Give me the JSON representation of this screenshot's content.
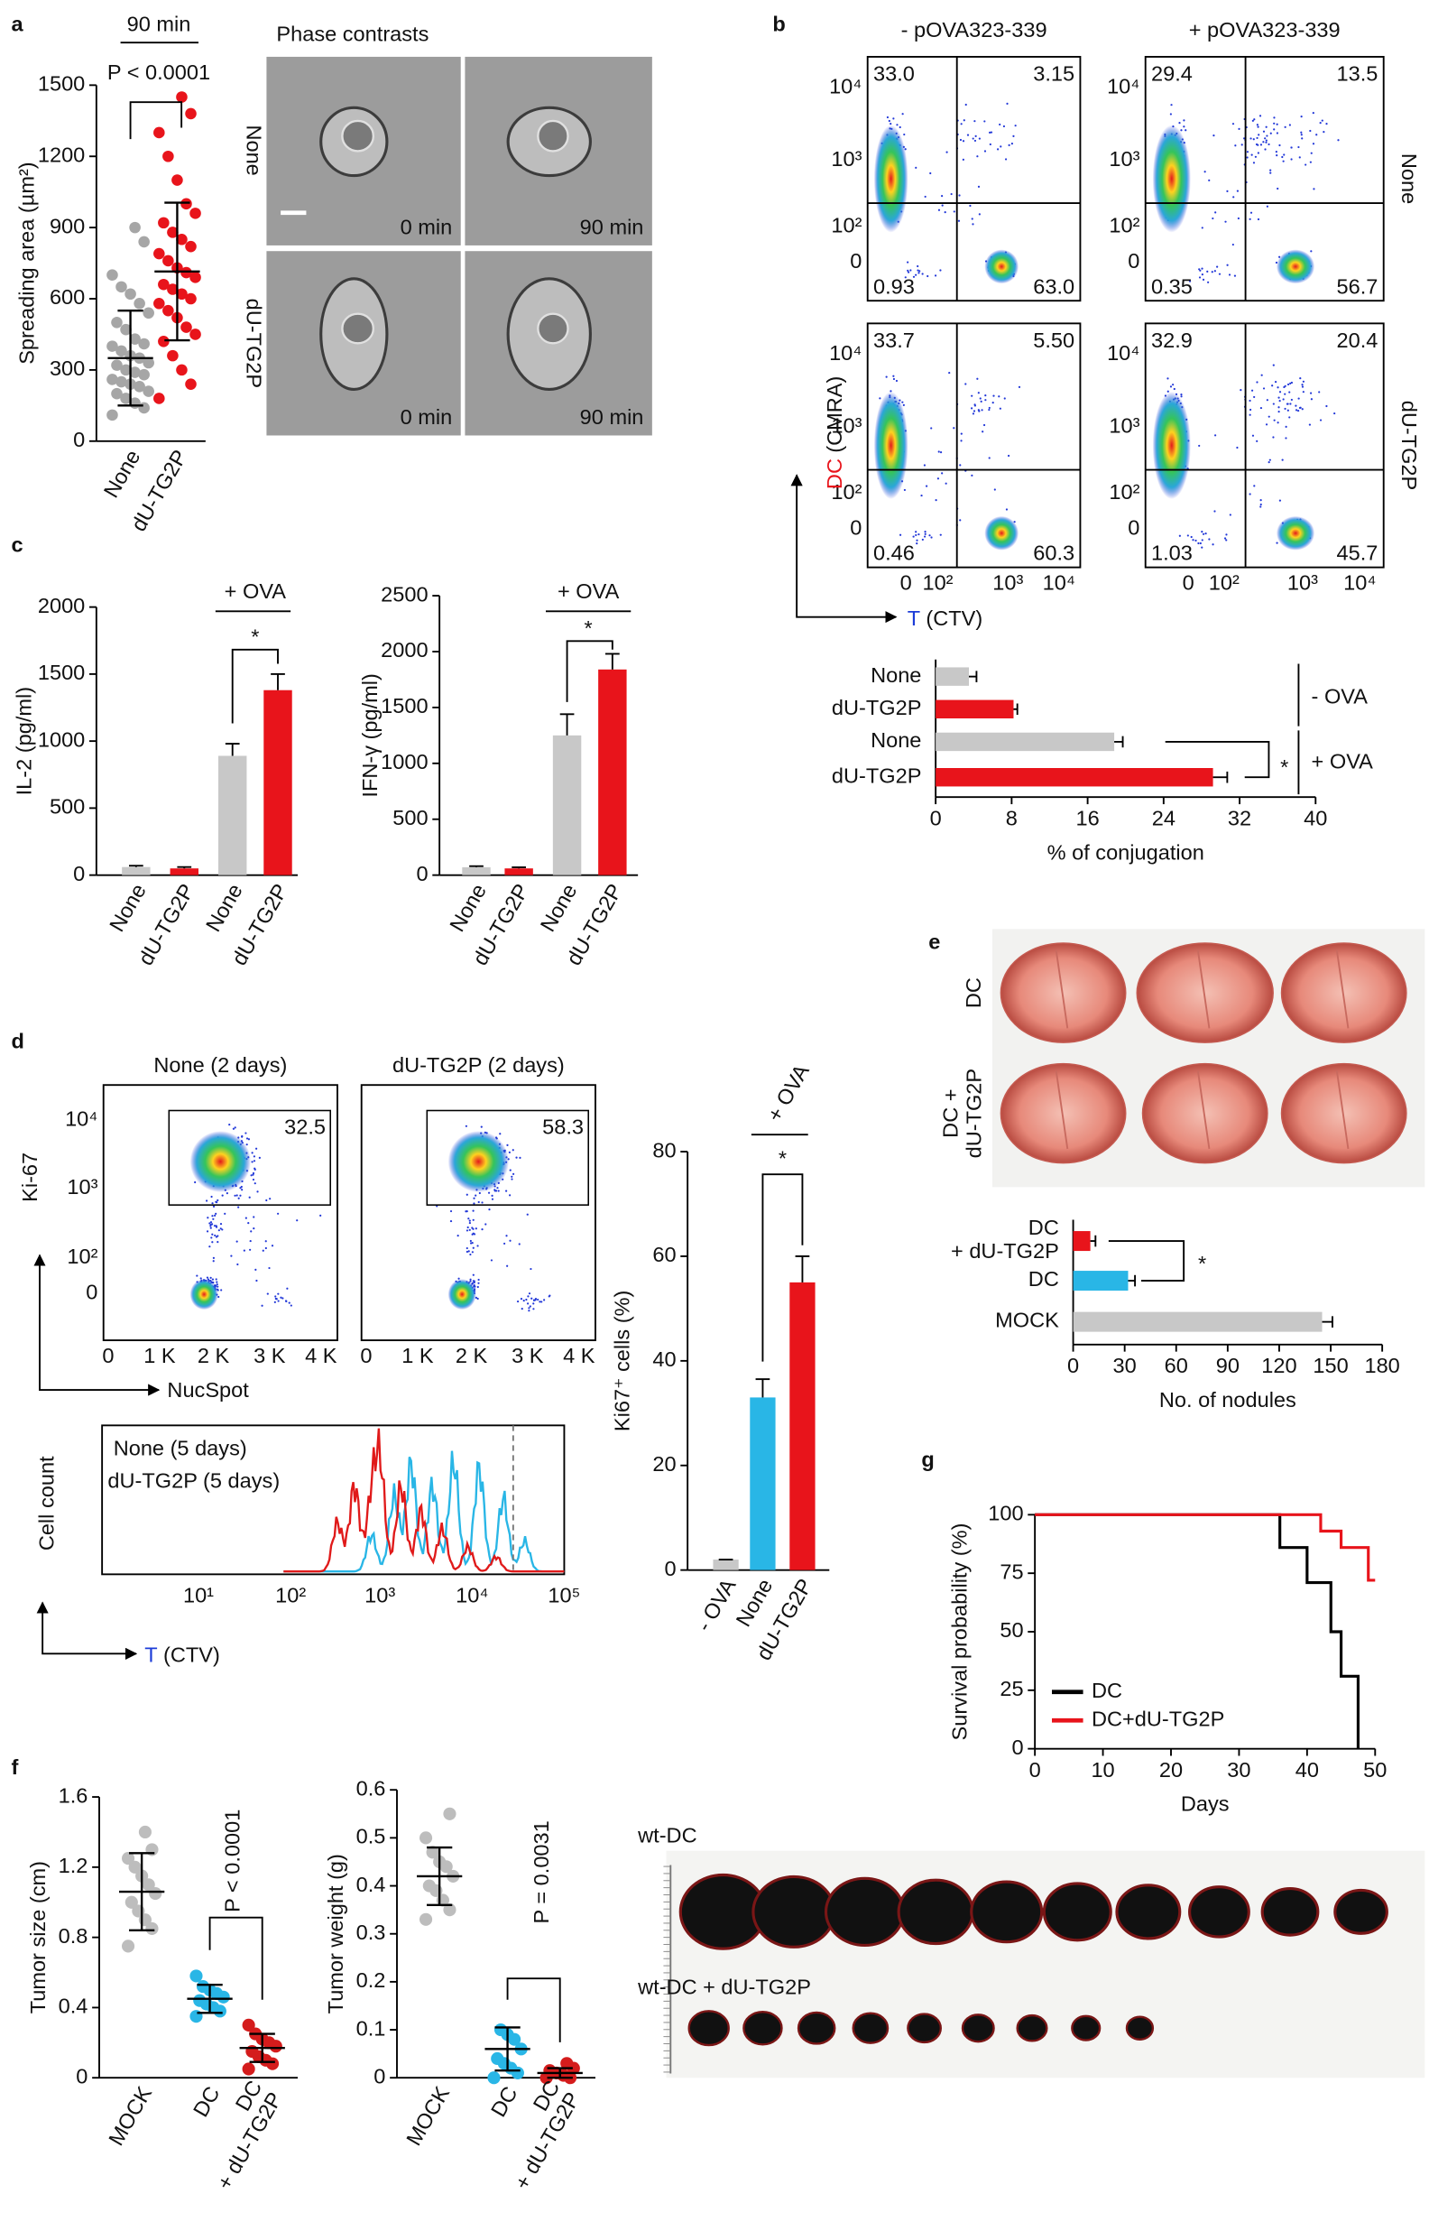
{
  "panel_labels": [
    "a",
    "b",
    "c",
    "d",
    "e",
    "f",
    "g"
  ],
  "images": {
    "phase_title": "Phase contrasts",
    "phase_rows": [
      "None",
      "dU-TG2P"
    ],
    "phase_times": [
      "0 min",
      "90 min",
      "0 min",
      "90 min"
    ],
    "lung_rows": [
      [
        "DC"
      ],
      [
        "DC +",
        "dU-TG2P"
      ]
    ],
    "tumor_rows": [
      "wt-DC",
      "wt-DC + dU-TG2P"
    ]
  },
  "flow_b": {
    "columns": [
      "- pOVA323-339",
      "+ pOVA323-339"
    ],
    "rows": [
      "None",
      "dU-TG2P"
    ],
    "y_label": [
      "DC",
      "(CMRA)"
    ],
    "x_label": [
      "T",
      "(CTV)"
    ],
    "yticks": [
      "10⁴",
      "10³",
      "10²",
      "0"
    ],
    "xticks": [
      "0",
      "10²",
      "10³",
      "10⁴"
    ],
    "quadrants": [
      [
        "33.0",
        "3.15",
        "0.93",
        "63.0"
      ],
      [
        "29.4",
        "13.5",
        "0.35",
        "56.7"
      ],
      [
        "33.7",
        "5.50",
        "0.46",
        "60.3"
      ],
      [
        "32.9",
        "20.4",
        "1.03",
        "45.7"
      ]
    ]
  },
  "flow_d": {
    "titles": [
      "None (2 days)",
      "dU-TG2P (2 days)"
    ],
    "gates": [
      "32.5",
      "58.3"
    ],
    "y_label": "Ki-67",
    "x_label": "NucSpot",
    "yticks": [
      "10⁴",
      "10³",
      "10²",
      "0"
    ],
    "xticks": [
      "0",
      "1 K",
      "2 K",
      "3 K",
      "4 K"
    ]
  },
  "histogram_d": {
    "legend": [
      "None (5 days)",
      "dU-TG2P (5 days)"
    ],
    "colors": [
      "#29b6e6",
      "#e01a1a"
    ],
    "y_label": "Cell count",
    "x_label": [
      "T",
      "(CTV)"
    ],
    "xticks": [
      "10¹",
      "10²",
      "10³",
      "10⁴",
      "10⁵"
    ]
  },
  "chart_data": [
    {
      "type": "dot",
      "title": "90 min",
      "annotation": "P < 0.0001",
      "y_label": "Spreading area (µm²)",
      "categories": [
        "None",
        "dU-TG2P"
      ],
      "ylim": [
        0,
        1500
      ],
      "yticks": [
        0,
        300,
        600,
        900,
        1200,
        1500
      ],
      "groups": [
        {
          "color": "#a6a6a6",
          "values": [
            110,
            140,
            160,
            180,
            200,
            210,
            230,
            240,
            250,
            260,
            280,
            290,
            300,
            320,
            330,
            350,
            360,
            380,
            400,
            410,
            430,
            470,
            500,
            540,
            580,
            620,
            650,
            700,
            840,
            900
          ],
          "mean": 350,
          "sd": 200
        },
        {
          "color": "#e8141b",
          "values": [
            180,
            240,
            300,
            360,
            420,
            450,
            480,
            520,
            550,
            580,
            600,
            620,
            640,
            660,
            690,
            710,
            730,
            760,
            790,
            820,
            850,
            880,
            920,
            960,
            1000,
            1100,
            1200,
            1300,
            1380,
            1450
          ],
          "mean": 715,
          "sd": 290
        }
      ]
    },
    {
      "type": "hbar",
      "x_label": "% of conjugation",
      "categories": [
        "None",
        "dU-TG2P",
        "None",
        "dU-TG2P"
      ],
      "values": [
        3.5,
        8.2,
        18.8,
        29.2
      ],
      "errors": [
        0.8,
        0.4,
        0.9,
        1.5
      ],
      "colors": [
        "#c8c8c8",
        "#e8141b",
        "#c8c8c8",
        "#e8141b"
      ],
      "xlim": [
        0,
        40
      ],
      "xticks": [
        0,
        8,
        16,
        24,
        32,
        40
      ],
      "group_labels": [
        "- OVA",
        "+ OVA"
      ],
      "annotation": "*"
    },
    {
      "type": "bar",
      "y_label": "IL-2 (pg/ml)",
      "categories": [
        "None",
        "dU-TG2P",
        "None",
        "dU-TG2P"
      ],
      "values": [
        60,
        50,
        890,
        1380
      ],
      "errors": [
        10,
        10,
        90,
        120
      ],
      "colors": [
        "#c8c8c8",
        "#e8141b",
        "#c8c8c8",
        "#e8141b"
      ],
      "ylim": [
        0,
        2000
      ],
      "yticks": [
        0,
        500,
        1000,
        1500,
        2000
      ],
      "group_label": "+ OVA",
      "annotation": "*"
    },
    {
      "type": "bar",
      "y_label": "IFN-γ (pg/ml)",
      "categories": [
        "None",
        "dU-TG2P",
        "None",
        "dU-TG2P"
      ],
      "values": [
        70,
        60,
        1250,
        1840
      ],
      "errors": [
        10,
        10,
        190,
        140
      ],
      "colors": [
        "#c8c8c8",
        "#e8141b",
        "#c8c8c8",
        "#e8141b"
      ],
      "ylim": [
        0,
        2500
      ],
      "yticks": [
        0,
        500,
        1000,
        1500,
        2000,
        2500
      ],
      "group_label": "+ OVA",
      "annotation": "*"
    },
    {
      "type": "bar",
      "y_label": "Ki67⁺ cells (%)",
      "categories": [
        "- OVA",
        "None",
        "dU-TG2P"
      ],
      "values": [
        2,
        33,
        55
      ],
      "errors": [
        0,
        3.5,
        5
      ],
      "colors": [
        "#c8c8c8",
        "#29b6e6",
        "#e8141b"
      ],
      "ylim": [
        0,
        80
      ],
      "yticks": [
        0,
        20,
        40,
        60,
        80
      ],
      "group_label": "+ OVA",
      "annotation": "*"
    },
    {
      "type": "hbar",
      "x_label": "No. of nodules",
      "categories": [
        [
          "DC",
          "+ dU-TG2P"
        ],
        [
          "DC"
        ],
        [
          "MOCK"
        ]
      ],
      "values": [
        10,
        32,
        145
      ],
      "errors": [
        3,
        4,
        6
      ],
      "colors": [
        "#e8141b",
        "#29b6e6",
        "#c8c8c8"
      ],
      "xlim": [
        0,
        180
      ],
      "xticks": [
        0,
        30,
        60,
        90,
        120,
        150,
        180
      ],
      "annotation": "*"
    },
    {
      "type": "line",
      "x_label": "Days",
      "y_label": "Survival probability (%)",
      "xlim": [
        0,
        50
      ],
      "xticks": [
        0,
        10,
        20,
        30,
        40,
        50
      ],
      "ylim": [
        0,
        100
      ],
      "yticks": [
        0,
        25,
        50,
        75,
        100
      ],
      "legend": "lower left",
      "series": [
        {
          "name": "DC",
          "color": "#000000",
          "x": [
            0,
            36,
            36,
            40,
            40,
            43.5,
            43.5,
            45,
            45,
            47.5,
            47.5
          ],
          "values": [
            100,
            100,
            86,
            86,
            71,
            71,
            50,
            50,
            31,
            31,
            0
          ]
        },
        {
          "name": "DC+dU-TG2P",
          "color": "#e8141b",
          "x": [
            0,
            42,
            42,
            45,
            45,
            49,
            49,
            50
          ],
          "values": [
            100,
            100,
            93,
            93,
            86,
            86,
            72,
            72
          ]
        }
      ]
    },
    {
      "type": "dot",
      "annotation": "P < 0.0001",
      "y_label": "Tumor size (cm)",
      "categories": [
        "MOCK",
        "DC",
        [
          "DC",
          "+ dU-TG2P"
        ]
      ],
      "ylim": [
        0,
        1.6
      ],
      "yticks": [
        0,
        0.4,
        0.8,
        1.2,
        1.6
      ],
      "groups": [
        {
          "color": "#bdbdbd",
          "values": [
            0.75,
            0.85,
            0.9,
            0.95,
            1.0,
            1.05,
            1.1,
            1.15,
            1.2,
            1.25,
            1.3,
            1.4
          ],
          "mean": 1.06,
          "sd": 0.22
        },
        {
          "color": "#29b6e6",
          "values": [
            0.35,
            0.38,
            0.4,
            0.42,
            0.44,
            0.46,
            0.48,
            0.5,
            0.52,
            0.58
          ],
          "mean": 0.45,
          "sd": 0.08
        },
        {
          "color": "#d41c1c",
          "values": [
            0.05,
            0.08,
            0.1,
            0.12,
            0.15,
            0.18,
            0.2,
            0.22,
            0.25,
            0.3
          ],
          "mean": 0.17,
          "sd": 0.08
        }
      ]
    },
    {
      "type": "dot",
      "annotation": "P = 0.0031",
      "y_label": "Tumor weight (g)",
      "categories": [
        "MOCK",
        "DC",
        [
          "DC",
          "+ dU-TG2P"
        ]
      ],
      "ylim": [
        0,
        0.6
      ],
      "yticks": [
        0,
        0.1,
        0.2,
        0.3,
        0.4,
        0.5,
        0.6
      ],
      "groups": [
        {
          "color": "#bdbdbd",
          "values": [
            0.33,
            0.35,
            0.37,
            0.39,
            0.4,
            0.42,
            0.44,
            0.45,
            0.47,
            0.5,
            0.55
          ],
          "mean": 0.42,
          "sd": 0.06
        },
        {
          "color": "#29b6e6",
          "values": [
            0.0,
            0.01,
            0.02,
            0.03,
            0.04,
            0.06,
            0.08,
            0.09,
            0.1
          ],
          "mean": 0.06,
          "sd": 0.045
        },
        {
          "color": "#d41c1c",
          "values": [
            0,
            0,
            0.005,
            0.01,
            0.015,
            0.02,
            0.03
          ],
          "mean": 0.01,
          "sd": 0.01
        }
      ]
    }
  ]
}
